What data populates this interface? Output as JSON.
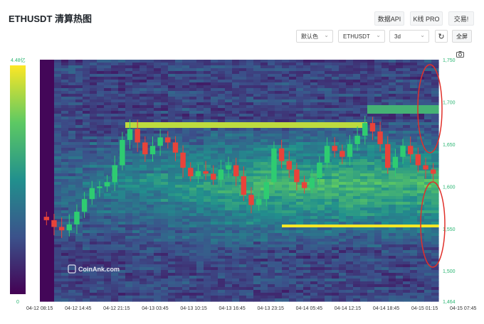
{
  "header": {
    "title": "ETHUSDT 清算热图",
    "buttons": {
      "data_api": "数据API",
      "kline_pro": "K线 PRO",
      "trade": "交易!"
    },
    "selects": {
      "color": "默认色",
      "symbol": "ETHUSDT",
      "range": "3d"
    },
    "fullscreen": "全屏",
    "icons": [
      "refresh-icon",
      "camera-icon",
      "chevron-down-icon"
    ]
  },
  "chart_data": {
    "type": "heatmap",
    "title": "",
    "xlabel": "",
    "ylabel": "",
    "x_ticks": [
      "04-12 08:15",
      "04-12 14:45",
      "04-12 21:15",
      "04-13 03:45",
      "04-13 10:15",
      "04-13 16:45",
      "04-13 23:15",
      "04-14 05:45",
      "04-14 12:15",
      "04-14 18:45",
      "04-15 01:15",
      "04-15 07:45"
    ],
    "y_ticks": [
      1464,
      1500,
      1550,
      1600,
      1650,
      1700,
      1750
    ],
    "y_tick_labels": [
      "1,464",
      "1,500",
      "1,550",
      "1,600",
      "1,650",
      "1,700",
      "1,750"
    ],
    "ylim": [
      1464,
      1750
    ],
    "colorbar": {
      "min_label": "0",
      "max_label": "4.48亿",
      "colors": [
        "#440154",
        "#3b528b",
        "#21908d",
        "#5dc963",
        "#fde725"
      ]
    },
    "bright_bands": [
      {
        "price": 1672,
        "intensity": 0.95,
        "from": "04-12 21:15",
        "to": "04-14 18:45"
      },
      {
        "price": 1553,
        "intensity": 1.0,
        "from": "04-14 00:30",
        "to": "04-15 07:45"
      },
      {
        "price": 1690,
        "intensity": 0.7,
        "from": "04-14 18:45",
        "to": "04-15 07:45"
      }
    ],
    "candles_close": [
      1560,
      1552,
      1548,
      1555,
      1570,
      1585,
      1598,
      1600,
      1605,
      1625,
      1655,
      1668,
      1652,
      1638,
      1648,
      1658,
      1652,
      1640,
      1622,
      1612,
      1618,
      1615,
      1608,
      1620,
      1625,
      1612,
      1590,
      1578,
      1585,
      1605,
      1645,
      1630,
      1620,
      1605,
      1598,
      1610,
      1628,
      1648,
      1642,
      1635,
      1650,
      1660,
      1675,
      1665,
      1650,
      1622,
      1635,
      1648,
      1638,
      1625,
      1620,
      1615
    ],
    "watermark": "CoinAnk.com"
  }
}
